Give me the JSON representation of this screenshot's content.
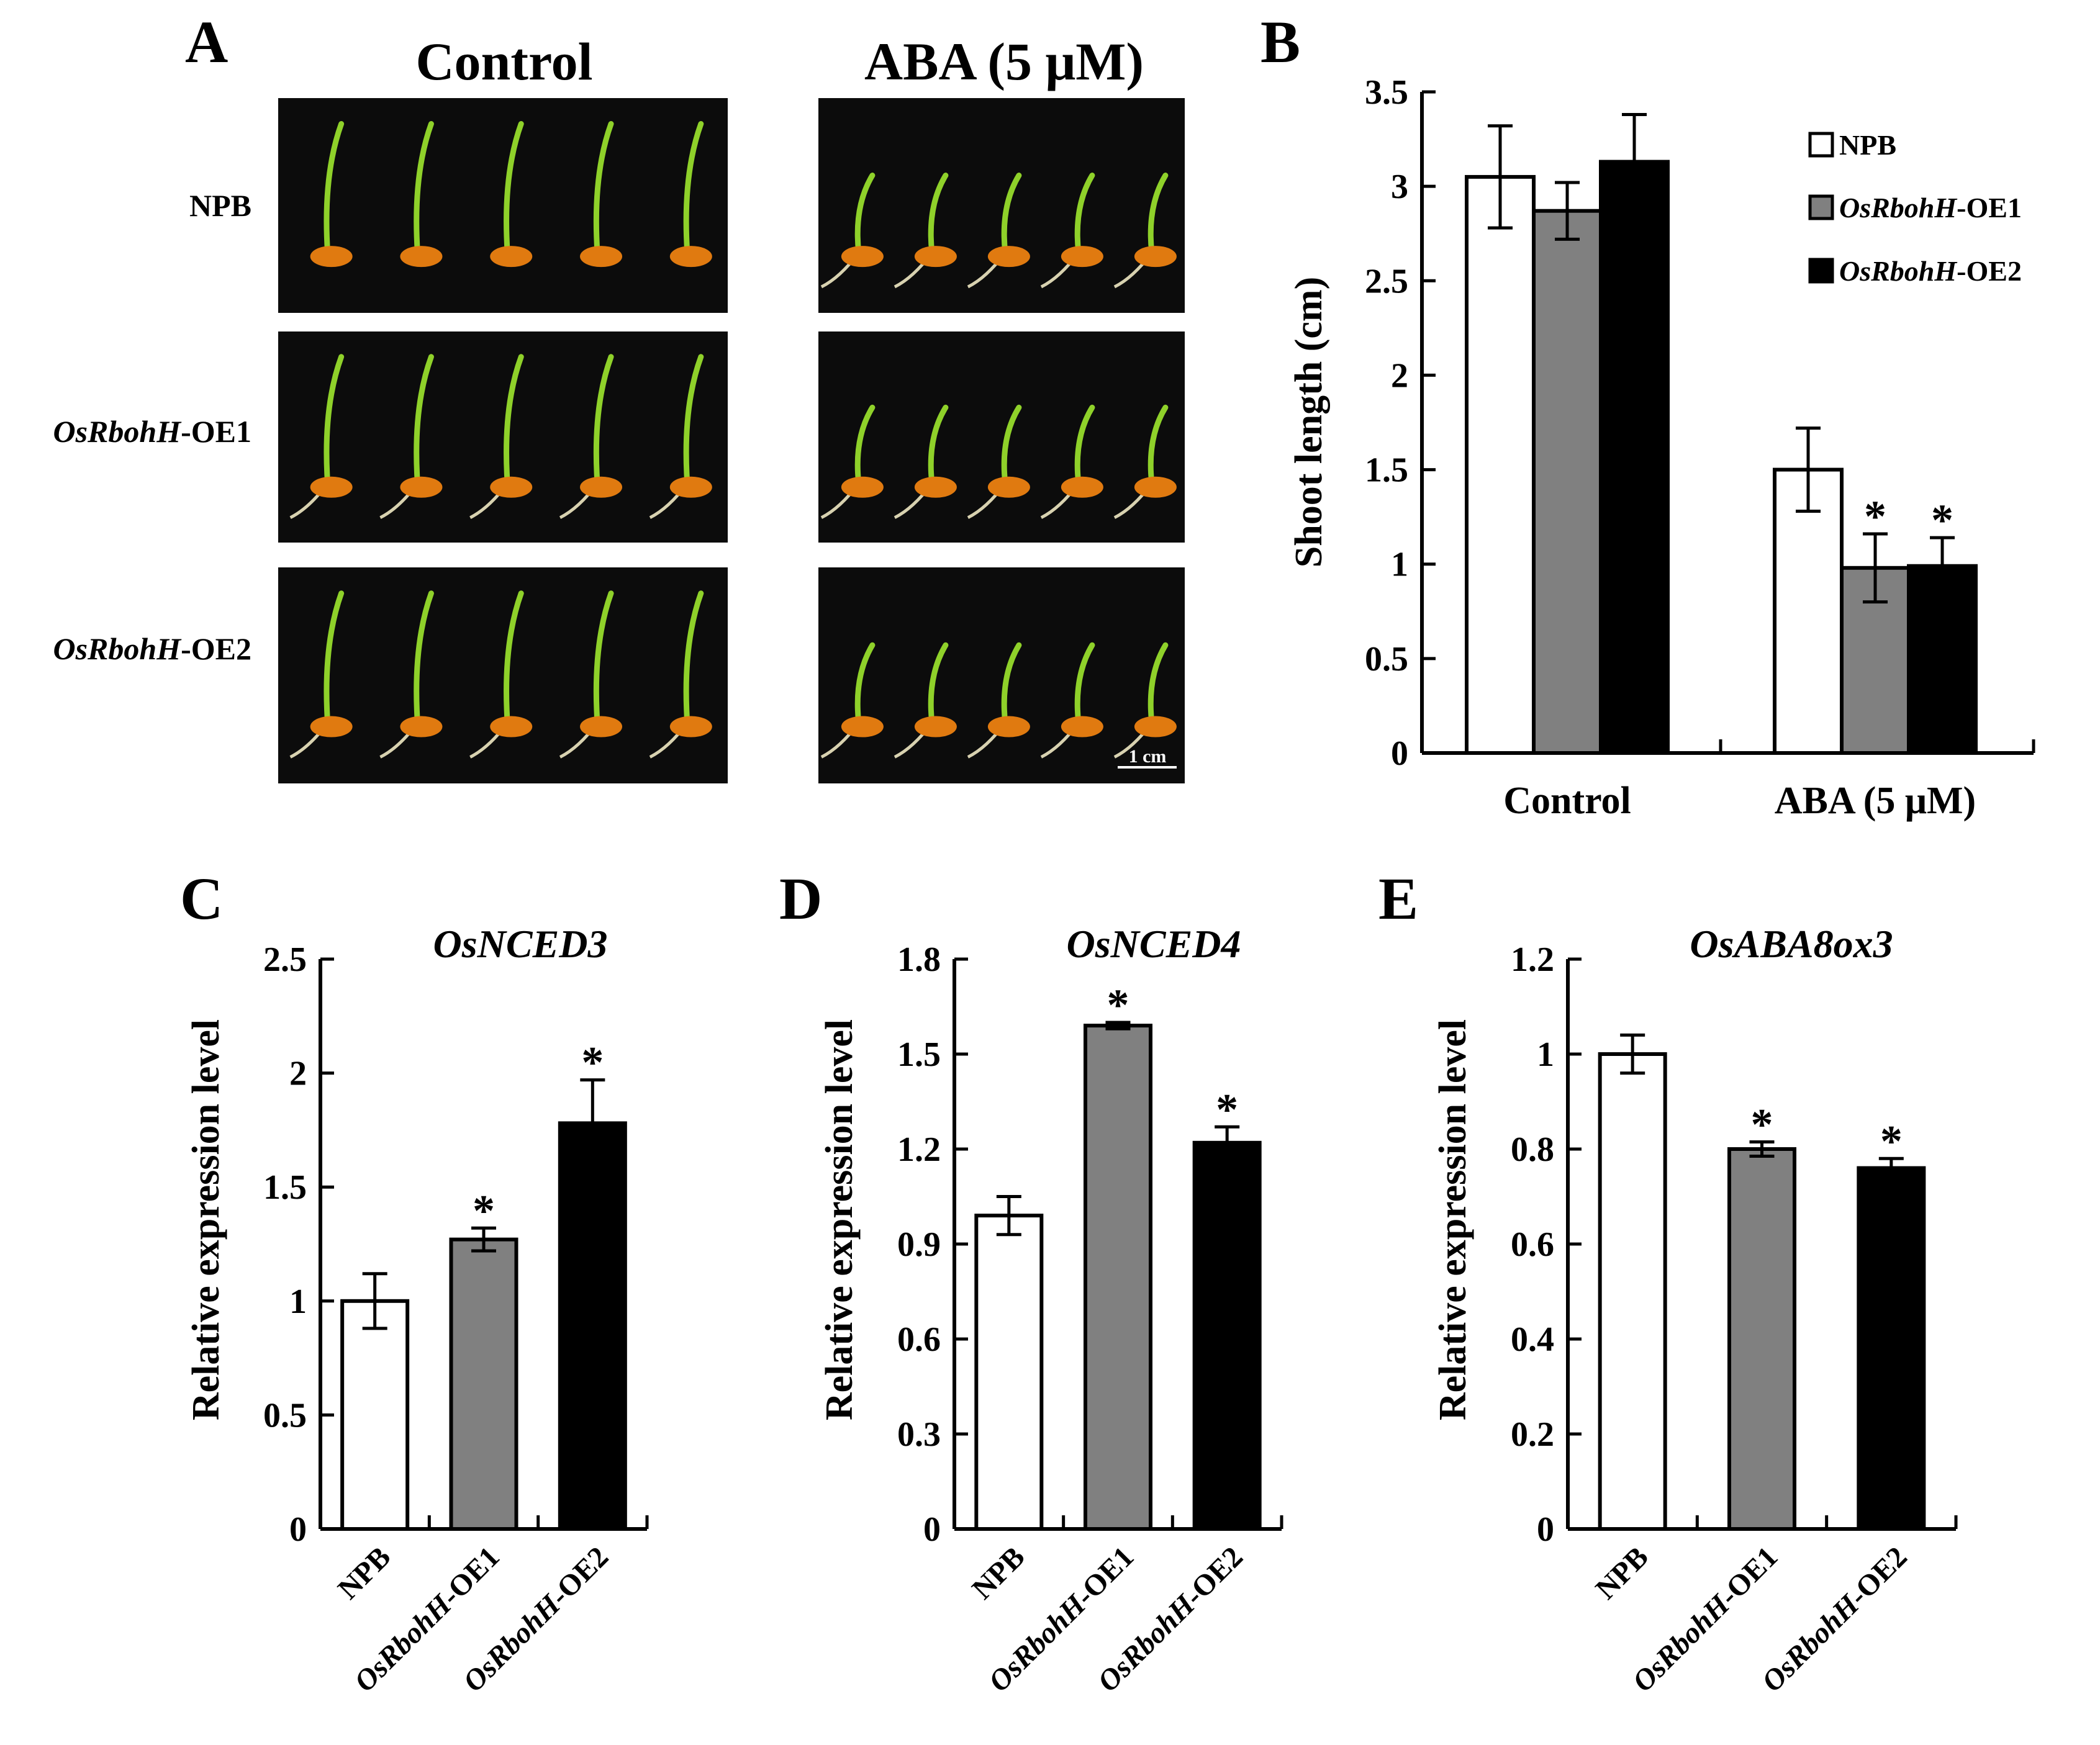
{
  "panels": {
    "A": "A",
    "B": "B",
    "C": "C",
    "D": "D",
    "E": "E"
  },
  "panel_a": {
    "col_control": "Control",
    "col_aba": "ABA (5 μM)",
    "rows": [
      {
        "italic": "",
        "plain": "NPB"
      },
      {
        "italic": "OsRbohH",
        "plain": "-OE1"
      },
      {
        "italic": "OsRbohH",
        "plain": "-OE2"
      }
    ],
    "scale_bar": "1 cm",
    "photo_color": "#0c0c0c",
    "seed_color": "#e07a10",
    "shoot_color": "#8fd12a"
  },
  "colors": {
    "NPB": "#ffffff",
    "OE1": "#808080",
    "OE2": "#000000"
  },
  "legend": [
    {
      "italic": "",
      "plain": "NPB"
    },
    {
      "italic": "OsRbohH",
      "plain": "-OE1"
    },
    {
      "italic": "OsRbohH",
      "plain": "-OE2"
    }
  ],
  "chart_data": [
    {
      "id": "B",
      "type": "bar",
      "title": "",
      "xlabel": "",
      "ylabel": "Shoot length (cm)",
      "ylim": [
        0,
        3.5
      ],
      "yticks": [
        0,
        0.5,
        1,
        1.5,
        2,
        2.5,
        3,
        3.5
      ],
      "ytick_labels": [
        "0",
        "0.5",
        "1",
        "1.5",
        "2",
        "2.5",
        "3",
        "3.5"
      ],
      "categories": [
        "Control",
        "ABA (5 μM)"
      ],
      "series": [
        {
          "name": "NPB",
          "values": [
            3.05,
            1.5
          ],
          "errors": [
            0.27,
            0.22
          ],
          "sig": [
            "",
            ""
          ]
        },
        {
          "name": "OsRbohH-OE1",
          "values": [
            2.87,
            0.98
          ],
          "errors": [
            0.15,
            0.18
          ],
          "sig": [
            "",
            "*"
          ]
        },
        {
          "name": "OsRbohH-OE2",
          "values": [
            3.13,
            0.99
          ],
          "errors": [
            0.25,
            0.15
          ],
          "sig": [
            "",
            "*"
          ]
        }
      ],
      "legend_position": "top-right"
    },
    {
      "id": "C",
      "type": "bar",
      "title": "OsNCED3",
      "ylabel": "Relative expression level",
      "ylim": [
        0,
        2.5
      ],
      "yticks": [
        0,
        0.5,
        1,
        1.5,
        2,
        2.5
      ],
      "ytick_labels": [
        "0",
        "0.5",
        "1",
        "1.5",
        "2",
        "2.5"
      ],
      "categories": [
        {
          "italic": "",
          "plain": "NPB"
        },
        {
          "italic": "OsRbohH",
          "plain": "-OE1"
        },
        {
          "italic": "OsRbohH",
          "plain": "-OE2"
        }
      ],
      "values": [
        1.0,
        1.27,
        1.78
      ],
      "errors": [
        0.12,
        0.05,
        0.19
      ],
      "sig": [
        "",
        "*",
        "*"
      ]
    },
    {
      "id": "D",
      "type": "bar",
      "title": "OsNCED4",
      "ylabel": "Relative expression level",
      "ylim": [
        0,
        1.8
      ],
      "yticks": [
        0,
        0.3,
        0.6,
        0.9,
        1.2,
        1.5,
        1.8
      ],
      "ytick_labels": [
        "0",
        "0.3",
        "0.6",
        "0.9",
        "1.2",
        "1.5",
        "1.8"
      ],
      "categories": [
        {
          "italic": "",
          "plain": "NPB"
        },
        {
          "italic": "OsRbohH",
          "plain": "-OE1"
        },
        {
          "italic": "OsRbohH",
          "plain": "-OE2"
        }
      ],
      "values": [
        0.99,
        1.59,
        1.22
      ],
      "errors": [
        0.06,
        0.01,
        0.05
      ],
      "sig": [
        "",
        "*",
        "*"
      ]
    },
    {
      "id": "E",
      "type": "bar",
      "title": "OsABA8ox3",
      "ylabel": "Relative expression level",
      "ylim": [
        0,
        1.2
      ],
      "yticks": [
        0,
        0.2,
        0.4,
        0.6,
        0.8,
        1,
        1.2
      ],
      "ytick_labels": [
        "0",
        "0.2",
        "0.4",
        "0.6",
        "0.8",
        "1",
        "1.2"
      ],
      "categories": [
        {
          "italic": "",
          "plain": "NPB"
        },
        {
          "italic": "OsRbohH",
          "plain": "-OE1"
        },
        {
          "italic": "OsRbohH",
          "plain": "-OE2"
        }
      ],
      "values": [
        1.0,
        0.8,
        0.76
      ],
      "errors": [
        0.04,
        0.015,
        0.02
      ],
      "sig": [
        "",
        "*",
        "*"
      ]
    }
  ]
}
